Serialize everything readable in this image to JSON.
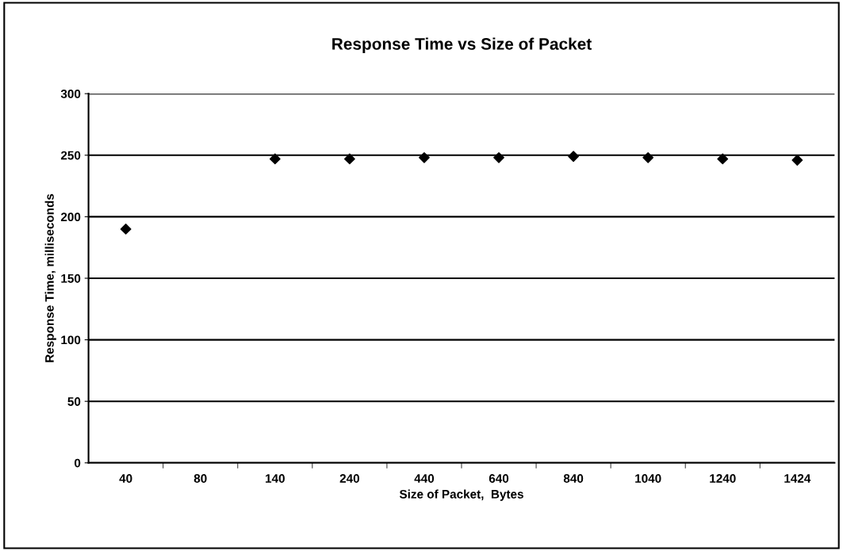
{
  "chart_data": {
    "type": "scatter",
    "title": "Response Time vs Size of Packet",
    "xlabel": "Size of Packet,  Bytes",
    "ylabel": "Response Time, milliseconds",
    "categories": [
      "40",
      "80",
      "140",
      "240",
      "440",
      "640",
      "840",
      "1040",
      "1240",
      "1424"
    ],
    "series": [
      {
        "color": "#000000",
        "values": [
          190,
          null,
          247,
          247,
          248,
          248,
          249,
          248,
          247,
          246
        ]
      }
    ],
    "ylim": [
      0,
      300
    ],
    "yticks": [
      0,
      50,
      100,
      150,
      200,
      250,
      300
    ],
    "grid": "y",
    "legend": false,
    "marker": "diamond"
  }
}
